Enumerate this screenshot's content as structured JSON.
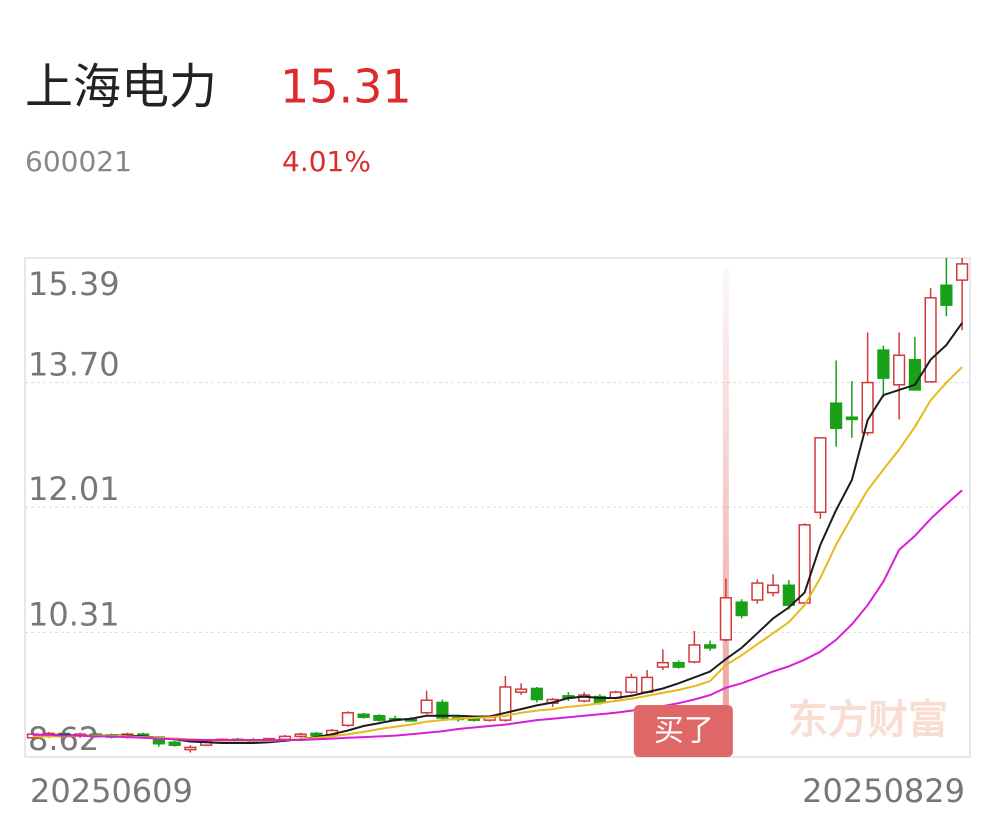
{
  "header": {
    "name": "上海电力",
    "price": "15.31",
    "code": "600021",
    "change": "4.01%"
  },
  "chart_data": {
    "type": "candlestick",
    "categories": [
      "20250609",
      null,
      null,
      null,
      null,
      null,
      null,
      null,
      null,
      null,
      null,
      null,
      null,
      null,
      null,
      null,
      null,
      null,
      null,
      null,
      null,
      null,
      null,
      null,
      null,
      null,
      null,
      null,
      null,
      null,
      null,
      null,
      null,
      null,
      null,
      null,
      null,
      null,
      null,
      null,
      null,
      null,
      null,
      null,
      null,
      null,
      null,
      null,
      null,
      null,
      null,
      null,
      null,
      null,
      null,
      null,
      null,
      null,
      null,
      "20250829"
    ],
    "open": [
      8.88,
      8.9,
      8.94,
      8.92,
      8.93,
      8.92,
      8.89,
      8.93,
      8.89,
      8.82,
      8.72,
      8.78,
      8.84,
      8.86,
      8.85,
      8.84,
      8.86,
      8.9,
      8.94,
      8.92,
      9.05,
      9.2,
      9.18,
      9.14,
      9.13,
      9.22,
      9.36,
      9.15,
      9.14,
      9.12,
      9.12,
      9.5,
      9.55,
      9.35,
      9.45,
      9.38,
      9.44,
      9.42,
      9.5,
      9.5,
      9.84,
      9.9,
      9.91,
      10.14,
      10.21,
      10.72,
      10.75,
      10.85,
      10.95,
      10.71,
      11.94,
      13.42,
      13.23,
      13.02,
      14.14,
      13.67,
      14.01,
      13.71,
      15.02,
      15.09
    ],
    "high": [
      8.95,
      8.96,
      8.96,
      8.95,
      8.95,
      8.94,
      8.95,
      8.95,
      8.9,
      8.84,
      8.78,
      8.86,
      8.87,
      8.88,
      8.88,
      8.88,
      8.92,
      8.95,
      8.96,
      9.0,
      9.24,
      9.22,
      9.2,
      9.18,
      9.16,
      9.52,
      9.4,
      9.18,
      9.16,
      9.18,
      9.72,
      9.62,
      9.57,
      9.42,
      9.5,
      9.5,
      9.47,
      9.52,
      9.75,
      9.8,
      10.08,
      9.93,
      10.33,
      10.2,
      11.04,
      10.76,
      11.03,
      11.1,
      11.02,
      11.79,
      12.95,
      14.0,
      13.72,
      14.38,
      14.2,
      14.38,
      14.32,
      14.98,
      15.39,
      15.39
    ],
    "low": [
      8.86,
      8.88,
      8.88,
      8.88,
      8.88,
      8.87,
      8.87,
      8.87,
      8.76,
      8.76,
      8.68,
      8.77,
      8.82,
      8.83,
      8.82,
      8.82,
      8.85,
      8.88,
      8.9,
      8.91,
      9.03,
      9.14,
      9.1,
      9.1,
      9.1,
      9.2,
      9.12,
      9.1,
      9.1,
      9.1,
      9.1,
      9.46,
      9.36,
      9.3,
      9.38,
      9.36,
      9.33,
      9.4,
      9.48,
      9.48,
      9.8,
      9.82,
      9.89,
      10.06,
      10.19,
      10.5,
      10.7,
      10.8,
      10.62,
      10.69,
      11.85,
      12.83,
      12.95,
      12.98,
      13.5,
      13.2,
      13.6,
      13.7,
      14.6,
      14.41
    ],
    "close": [
      8.93,
      8.94,
      8.9,
      8.93,
      8.9,
      8.89,
      8.93,
      8.89,
      8.8,
      8.78,
      8.75,
      8.84,
      8.86,
      8.85,
      8.84,
      8.87,
      8.9,
      8.93,
      8.91,
      8.98,
      9.22,
      9.16,
      9.12,
      9.12,
      9.11,
      9.39,
      9.15,
      9.13,
      9.12,
      9.16,
      9.57,
      9.54,
      9.4,
      9.4,
      9.42,
      9.46,
      9.36,
      9.5,
      9.7,
      9.7,
      9.9,
      9.84,
      10.14,
      10.1,
      10.78,
      10.54,
      10.98,
      10.95,
      10.68,
      11.77,
      12.95,
      13.08,
      13.2,
      13.7,
      13.76,
      14.07,
      13.6,
      14.85,
      14.75,
      15.31
    ],
    "up_color": "#d23a3a",
    "down_color": "#18a018",
    "series": [
      {
        "color": "#1c1c1c",
        "values": [
          8.92,
          8.92,
          8.92,
          8.91,
          8.91,
          8.91,
          8.91,
          8.9,
          8.88,
          8.86,
          8.83,
          8.82,
          8.81,
          8.81,
          8.81,
          8.82,
          8.84,
          8.86,
          8.89,
          8.93,
          8.98,
          9.04,
          9.08,
          9.12,
          9.14,
          9.18,
          9.18,
          9.18,
          9.17,
          9.17,
          9.22,
          9.27,
          9.32,
          9.36,
          9.42,
          9.44,
          9.42,
          9.42,
          9.45,
          9.5,
          9.55,
          9.62,
          9.7,
          9.78,
          9.95,
          10.1,
          10.3,
          10.5,
          10.65,
          10.85,
          11.5,
          11.97,
          12.38,
          13.19,
          13.53,
          13.6,
          13.67,
          14.01,
          14.21,
          14.51
        ]
      },
      {
        "color": "#e8b81c",
        "values": [
          8.9,
          8.9,
          8.9,
          8.91,
          8.91,
          8.91,
          8.9,
          8.89,
          8.88,
          8.87,
          8.86,
          8.85,
          8.84,
          8.84,
          8.84,
          8.84,
          8.85,
          8.86,
          8.88,
          8.9,
          8.93,
          8.96,
          9.0,
          9.03,
          9.06,
          9.1,
          9.12,
          9.14,
          9.15,
          9.16,
          9.18,
          9.22,
          9.25,
          9.27,
          9.3,
          9.32,
          9.35,
          9.38,
          9.41,
          9.45,
          9.49,
          9.53,
          9.58,
          9.65,
          9.87,
          10.0,
          10.15,
          10.3,
          10.45,
          10.68,
          11.05,
          11.5,
          11.88,
          12.24,
          12.52,
          12.79,
          13.1,
          13.46,
          13.7,
          13.91
        ]
      },
      {
        "color": "#d81fd8",
        "values": [
          8.92,
          8.92,
          8.91,
          8.91,
          8.9,
          8.9,
          8.89,
          8.88,
          8.87,
          8.86,
          8.85,
          8.85,
          8.85,
          8.85,
          8.85,
          8.85,
          8.85,
          8.85,
          8.86,
          8.87,
          8.88,
          8.89,
          8.9,
          8.91,
          8.93,
          8.95,
          8.97,
          9.0,
          9.02,
          9.04,
          9.06,
          9.09,
          9.12,
          9.14,
          9.16,
          9.18,
          9.2,
          9.22,
          9.25,
          9.28,
          9.31,
          9.35,
          9.4,
          9.46,
          9.56,
          9.62,
          9.7,
          9.78,
          9.85,
          9.94,
          10.05,
          10.21,
          10.42,
          10.68,
          11.0,
          11.43,
          11.62,
          11.85,
          12.05,
          12.24
        ]
      }
    ],
    "ylim": [
      8.62,
      15.39
    ],
    "yticks": [
      15.39,
      {
        "value": 13.7,
        "label": "13.70"
      },
      12.01,
      10.31,
      8.62
    ],
    "grid": true,
    "marker": {
      "label": "买了",
      "index": 44
    },
    "watermark": "东方财富"
  }
}
